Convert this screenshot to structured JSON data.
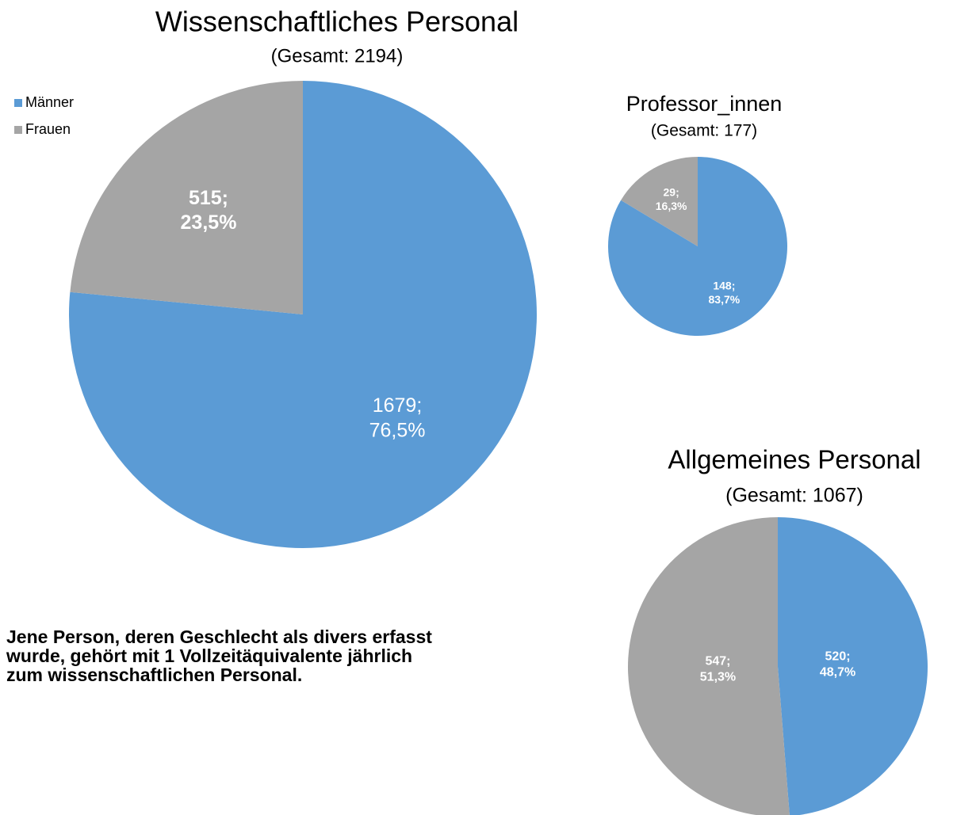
{
  "chart_data": [
    {
      "type": "pie",
      "title": "Wissenschaftliches Personal",
      "subtitle": "(Gesamt: 2194)",
      "categories": [
        "Männer",
        "Frauen"
      ],
      "values": [
        1679,
        515
      ],
      "value_labels": [
        "1679; 76,5%",
        "515; 23,5%"
      ],
      "colors": [
        "#5b9bd5",
        "#a5a5a5"
      ],
      "legend": "top-left",
      "annotation": "Jene Person, deren Geschlecht als divers erfasst wurde, gehört mit 1 Vollzeitäquivalente jährlich zum wissenschaftlichen Personal."
    },
    {
      "type": "pie",
      "title": "Professor_innen",
      "subtitle": "(Gesamt: 177)",
      "categories": [
        "Männer",
        "Frauen"
      ],
      "values": [
        148,
        29
      ],
      "value_labels": [
        "148; 83,7%",
        "29; 16,3%"
      ],
      "colors": [
        "#5b9bd5",
        "#a5a5a5"
      ]
    },
    {
      "type": "pie",
      "title": "Allgemeines Personal",
      "subtitle": "(Gesamt: 1067)",
      "categories": [
        "Männer",
        "Frauen"
      ],
      "values": [
        520,
        547
      ],
      "value_labels": [
        "520; 48,7%",
        "547; 51,3%"
      ],
      "colors": [
        "#5b9bd5",
        "#a5a5a5"
      ]
    }
  ]
}
